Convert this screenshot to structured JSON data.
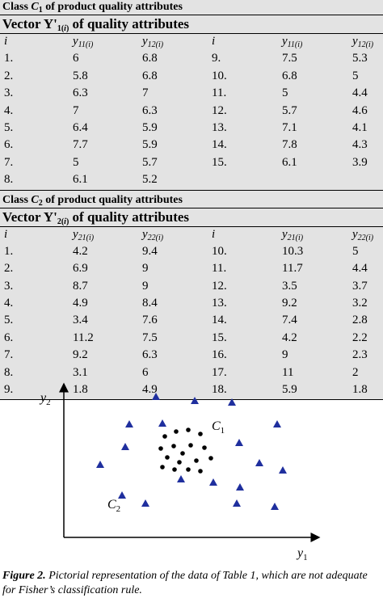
{
  "table": {
    "class1": {
      "caption": "Class C1 of product quality attributes",
      "vector_title": "Vector Y'1(i) of quality attributes",
      "headers": [
        "i",
        "y11(i)",
        "y12(i)",
        "i",
        "y11(i)",
        "y12(i)"
      ],
      "rows": [
        [
          "1.",
          "6",
          "6.8",
          "9.",
          "7.5",
          "5.3"
        ],
        [
          "2.",
          "5.8",
          "6.8",
          "10.",
          "6.8",
          "5"
        ],
        [
          "3.",
          "6.3",
          "7",
          "11.",
          "5",
          "4.4"
        ],
        [
          "4.",
          "7",
          "6.3",
          "12.",
          "5.7",
          "4.6"
        ],
        [
          "5.",
          "6.4",
          "5.9",
          "13.",
          "7.1",
          "4.1"
        ],
        [
          "6.",
          "7.7",
          "5.9",
          "14.",
          "7.8",
          "4.3"
        ],
        [
          "7.",
          "5",
          "5.7",
          "15.",
          "6.1",
          "3.9"
        ],
        [
          "8.",
          "6.1",
          "5.2",
          "",
          "",
          ""
        ]
      ]
    },
    "class2": {
      "caption": "Class C2 of product quality attributes",
      "vector_title": "Vector Y'2(i) of quality attributes",
      "headers": [
        "i",
        "y21(i)",
        "y22(i)",
        "i",
        "y21(i)",
        "y22(i)"
      ],
      "rows": [
        [
          "1.",
          "4.2",
          "9.4",
          "10.",
          "10.3",
          "5"
        ],
        [
          "2.",
          "6.9",
          "9",
          "11.",
          "11.7",
          "4.4"
        ],
        [
          "3.",
          "8.7",
          "9",
          "12.",
          "3.5",
          "3.7"
        ],
        [
          "4.",
          "4.9",
          "8.4",
          "13.",
          "9.2",
          "3.2"
        ],
        [
          "5.",
          "3.4",
          "7.6",
          "14.",
          "7.4",
          "2.8"
        ],
        [
          "6.",
          "11.2",
          "7.5",
          "15.",
          "4.2",
          "2.2"
        ],
        [
          "7.",
          "9.2",
          "6.3",
          "16.",
          "9",
          "2.3"
        ],
        [
          "8.",
          "3.1",
          "6",
          "17.",
          "11",
          "2"
        ],
        [
          "9.",
          "1.8",
          "4.9",
          "18.",
          "5.9",
          "1.8"
        ]
      ]
    }
  },
  "figure": {
    "y_axis_label": "y2",
    "x_axis_label": "y1",
    "class1_label": "C1",
    "class2_label": "C2",
    "dot_color": "#000000",
    "triangle_color": "#1f2f9e"
  },
  "caption": {
    "label": "Figure 2.",
    "text": " Pictorial representation of the data of Table 1, which are not adequate for Fisher’s classification rule."
  }
}
